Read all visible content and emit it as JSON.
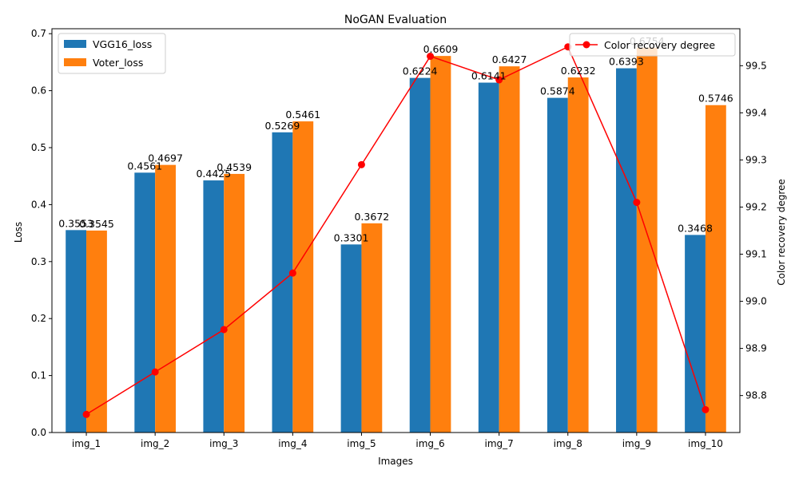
{
  "chart_data": {
    "type": "bar",
    "title": "NoGAN Evaluation",
    "xlabel": "Images",
    "ylabel": "Loss",
    "y2label": "Color recovery degree",
    "categories": [
      "img_1",
      "img_2",
      "img_3",
      "img_4",
      "img_5",
      "img_6",
      "img_7",
      "img_8",
      "img_9",
      "img_10"
    ],
    "series": [
      {
        "name": "VGG16_loss",
        "type": "bar",
        "axis": "left",
        "color": "#1f77b4",
        "values": [
          0.3553,
          0.4561,
          0.4425,
          0.5269,
          0.3301,
          0.6224,
          0.6141,
          0.5874,
          0.6393,
          0.3468
        ]
      },
      {
        "name": "Voter_loss",
        "type": "bar",
        "axis": "left",
        "color": "#ff7f0e",
        "values": [
          0.3545,
          0.4697,
          0.4539,
          0.5461,
          0.3672,
          0.6609,
          0.6427,
          0.6232,
          0.6754,
          0.5746
        ]
      },
      {
        "name": "Color recovery degree",
        "type": "line",
        "axis": "right",
        "color": "#ff0000",
        "values": [
          98.76,
          98.85,
          98.94,
          99.06,
          99.29,
          99.52,
          99.47,
          99.54,
          99.21,
          98.77
        ]
      }
    ],
    "data_labels": {
      "VGG16_loss": [
        "0.3553",
        "0.4561",
        "0.4425",
        "0.5269",
        "0.3301",
        "0.6224",
        "0.6141",
        "0.5874",
        "0.6393",
        "0.3468"
      ],
      "Voter_loss": [
        "0.3545",
        "0.4697",
        "0.4539",
        "0.5461",
        "0.3672",
        "0.6609",
        "0.6427",
        "0.6232",
        "0.6754",
        "0.5746"
      ]
    },
    "ylim": [
      0,
      0.7087
    ],
    "y2lim": [
      98.7215,
      99.5785
    ],
    "yticks": [
      0.0,
      0.1,
      0.2,
      0.3,
      0.4,
      0.5,
      0.6,
      0.7
    ],
    "ytick_labels": [
      "0.0",
      "0.1",
      "0.2",
      "0.3",
      "0.4",
      "0.5",
      "0.6",
      "0.7"
    ],
    "y2ticks": [
      98.8,
      98.9,
      99.0,
      99.1,
      99.2,
      99.3,
      99.4,
      99.5
    ],
    "y2tick_labels": [
      "98.8",
      "98.9",
      "99.0",
      "99.1",
      "99.2",
      "99.3",
      "99.4",
      "99.5"
    ],
    "grid": false,
    "legend_left": "top-left",
    "legend_right": "top-right"
  }
}
